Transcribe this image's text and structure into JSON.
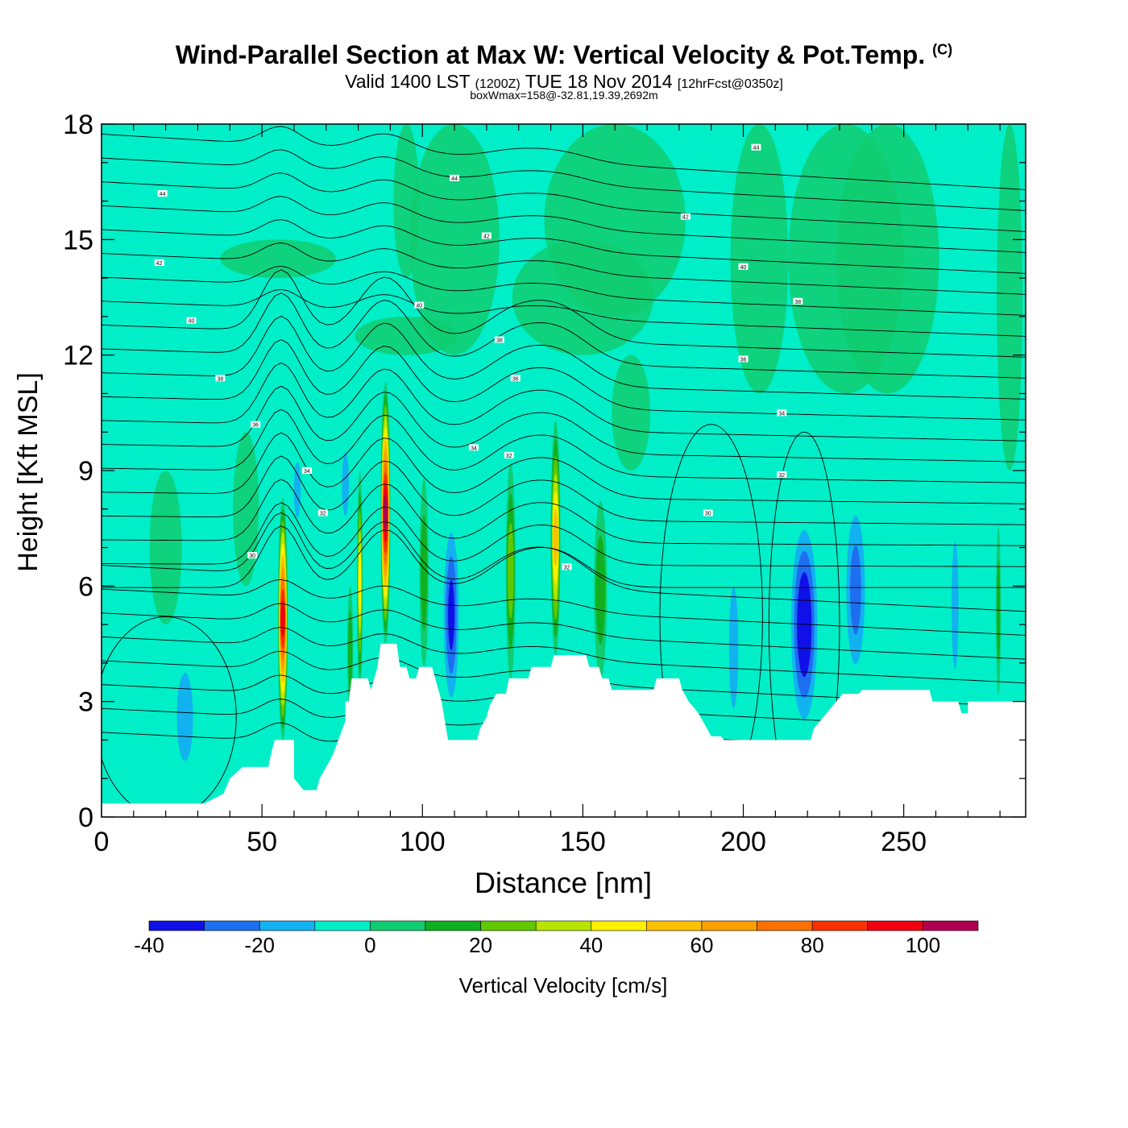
{
  "titles": {
    "main": "Wind-Parallel Section at Max W: Vertical Velocity & Pot.Temp.",
    "copyright": "(C)",
    "sub_a": "Valid 1400 LST",
    "sub_b": "(1200Z)",
    "sub_c": "TUE 18 Nov 2014",
    "sub_d": "[12hrFcst@0350z]",
    "info": "boxWmax=158@-32.81,19.39,2692m"
  },
  "chart_data": {
    "type": "heatmap",
    "xlabel": "Distance [nm]",
    "ylabel": "Height [Kft MSL]",
    "xlim": [
      0,
      288
    ],
    "ylim": [
      0,
      18
    ],
    "xticks": [
      "0",
      "50",
      "100",
      "150",
      "200",
      "250"
    ],
    "yticks": [
      "0",
      "3",
      "6",
      "9",
      "12",
      "15",
      "18"
    ],
    "colorbar": {
      "label": "Vertical Velocity [cm/s]",
      "levels": [
        -40,
        -30,
        -20,
        -10,
        0,
        10,
        20,
        30,
        40,
        50,
        60,
        70,
        80,
        90,
        100,
        110
      ],
      "tick_labels": [
        "-40",
        "-20",
        "0",
        "20",
        "40",
        "60",
        "80",
        "100"
      ],
      "colors": [
        "#1010e8",
        "#1e6ef0",
        "#12b2f0",
        "#00eec8",
        "#10cc70",
        "#10b020",
        "#60c800",
        "#b8e400",
        "#fcf000",
        "#fcc000",
        "#fca000",
        "#fc7000",
        "#f83000",
        "#f00010",
        "#b00050"
      ]
    },
    "background_color": "#00eec8",
    "terrain": [
      [
        0,
        0.35
      ],
      [
        32,
        0.35
      ],
      [
        38,
        0.6
      ],
      [
        40,
        1.0
      ],
      [
        44,
        1.3
      ],
      [
        52,
        1.3
      ],
      [
        53,
        1.7
      ],
      [
        54,
        2.0
      ],
      [
        60,
        2.0
      ],
      [
        60,
        1.0
      ],
      [
        63,
        0.7
      ],
      [
        67,
        0.7
      ],
      [
        68,
        1.0
      ],
      [
        70,
        1.3
      ],
      [
        72,
        1.6
      ],
      [
        76,
        2.5
      ],
      [
        76,
        3.0
      ],
      [
        77,
        3.0
      ],
      [
        78,
        3.6
      ],
      [
        83,
        3.6
      ],
      [
        84,
        3.3
      ],
      [
        85,
        3.6
      ],
      [
        86,
        3.9
      ],
      [
        87,
        4.5
      ],
      [
        92,
        4.5
      ],
      [
        93,
        3.9
      ],
      [
        95,
        3.9
      ],
      [
        96,
        3.6
      ],
      [
        98,
        3.6
      ],
      [
        99,
        3.9
      ],
      [
        103,
        3.9
      ],
      [
        104,
        3.6
      ],
      [
        106,
        3.0
      ],
      [
        107,
        2.5
      ],
      [
        108,
        2.0
      ],
      [
        117,
        2.0
      ],
      [
        118,
        2.3
      ],
      [
        120,
        2.6
      ],
      [
        121,
        2.9
      ],
      [
        123,
        3.2
      ],
      [
        126,
        3.2
      ],
      [
        127,
        3.6
      ],
      [
        133,
        3.6
      ],
      [
        134,
        3.9
      ],
      [
        140,
        3.9
      ],
      [
        141,
        4.2
      ],
      [
        151,
        4.2
      ],
      [
        152,
        3.9
      ],
      [
        155,
        3.9
      ],
      [
        156,
        3.6
      ],
      [
        158,
        3.6
      ],
      [
        159,
        3.3
      ],
      [
        172,
        3.3
      ],
      [
        173,
        3.6
      ],
      [
        180,
        3.6
      ],
      [
        181,
        3.3
      ],
      [
        183,
        3.0
      ],
      [
        186,
        2.7
      ],
      [
        188,
        2.4
      ],
      [
        190,
        2.1
      ],
      [
        193,
        2.1
      ],
      [
        194,
        2.0
      ],
      [
        221,
        2.0
      ],
      [
        222,
        2.3
      ],
      [
        225,
        2.6
      ],
      [
        228,
        2.9
      ],
      [
        231,
        3.2
      ],
      [
        236,
        3.2
      ],
      [
        237,
        3.3
      ],
      [
        258,
        3.3
      ],
      [
        259,
        3.0
      ],
      [
        267,
        3.0
      ],
      [
        268,
        2.7
      ],
      [
        270,
        2.7
      ],
      [
        270,
        3.0
      ],
      [
        288,
        3.0
      ]
    ],
    "updrafts": [
      {
        "x": 56.5,
        "top": 8.3,
        "bottom": 2.0,
        "width": 3.0,
        "max_w": 100
      },
      {
        "x": 88.5,
        "top": 11.3,
        "bottom": 4.5,
        "width": 3.0,
        "max_w": 110
      },
      {
        "x": 80.5,
        "top": 9.0,
        "bottom": 3.2,
        "width": 1.7,
        "max_w": 45
      },
      {
        "x": 141.5,
        "top": 10.3,
        "bottom": 4.2,
        "width": 3.0,
        "max_w": 55
      },
      {
        "x": 127.5,
        "top": 9.2,
        "bottom": 3.6,
        "width": 3.0,
        "max_w": 28
      },
      {
        "x": 100.5,
        "top": 8.8,
        "bottom": 3.9,
        "width": 2.8,
        "max_w": 24
      },
      {
        "x": 279.5,
        "top": 7.5,
        "bottom": 3.2,
        "width": 1.5,
        "max_w": 22
      },
      {
        "x": 155.5,
        "top": 8.2,
        "bottom": 3.6,
        "width": 4.0,
        "max_w": 18
      },
      {
        "x": 77.5,
        "top": 6.0,
        "bottom": 2.6,
        "width": 1.8,
        "max_w": 18
      }
    ],
    "downdrafts": [
      {
        "x": 219,
        "top": 8.0,
        "bottom": 2.0,
        "width": 10,
        "min_w": -40
      },
      {
        "x": 109,
        "top": 8.0,
        "bottom": 2.5,
        "width": 6,
        "min_w": -32
      },
      {
        "x": 235,
        "top": 8.6,
        "bottom": 3.2,
        "width": 8,
        "min_w": -22
      },
      {
        "x": 26,
        "top": 4.2,
        "bottom": 1.0,
        "width": 7,
        "min_w": -18
      },
      {
        "x": 61,
        "top": 9.5,
        "bottom": 7.5,
        "width": 3,
        "min_w": -18
      },
      {
        "x": 76,
        "top": 9.8,
        "bottom": 7.5,
        "width": 3,
        "min_w": -18
      },
      {
        "x": 197,
        "top": 6.6,
        "bottom": 2.2,
        "width": 4,
        "min_w": -15
      },
      {
        "x": 266,
        "top": 7.8,
        "bottom": 3.2,
        "width": 3,
        "min_w": -15
      }
    ],
    "theta_labels": [
      {
        "x": 19,
        "y": 16.2,
        "text": "44"
      },
      {
        "x": 18,
        "y": 14.4,
        "text": "42"
      },
      {
        "x": 28,
        "y": 12.9,
        "text": "40"
      },
      {
        "x": 37,
        "y": 11.4,
        "text": "38"
      },
      {
        "x": 48,
        "y": 10.2,
        "text": "36"
      },
      {
        "x": 64,
        "y": 9.0,
        "text": "34"
      },
      {
        "x": 69,
        "y": 7.9,
        "text": "32"
      },
      {
        "x": 47,
        "y": 6.8,
        "text": "30"
      },
      {
        "x": 110,
        "y": 16.6,
        "text": "44"
      },
      {
        "x": 120,
        "y": 15.1,
        "text": "42"
      },
      {
        "x": 99,
        "y": 13.3,
        "text": "40"
      },
      {
        "x": 124,
        "y": 12.4,
        "text": "38"
      },
      {
        "x": 129,
        "y": 11.4,
        "text": "36"
      },
      {
        "x": 116,
        "y": 9.6,
        "text": "34"
      },
      {
        "x": 127,
        "y": 9.4,
        "text": "32"
      },
      {
        "x": 145,
        "y": 6.5,
        "text": "32"
      },
      {
        "x": 204,
        "y": 17.4,
        "text": "44"
      },
      {
        "x": 182,
        "y": 15.6,
        "text": "42"
      },
      {
        "x": 200,
        "y": 14.3,
        "text": "40"
      },
      {
        "x": 217,
        "y": 13.4,
        "text": "38"
      },
      {
        "x": 200,
        "y": 11.9,
        "text": "36"
      },
      {
        "x": 212,
        "y": 10.5,
        "text": "34"
      },
      {
        "x": 212,
        "y": 8.9,
        "text": "32"
      },
      {
        "x": 189,
        "y": 7.9,
        "text": "30"
      }
    ]
  }
}
